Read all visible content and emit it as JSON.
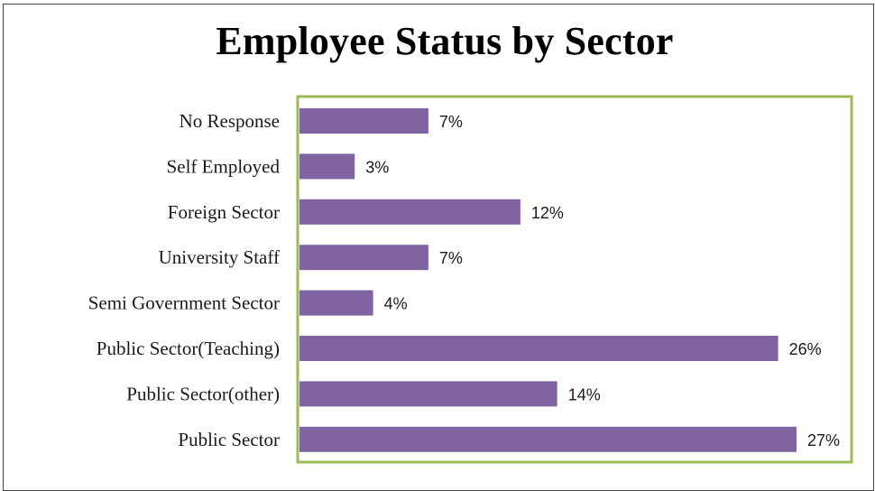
{
  "chart_data": {
    "type": "bar",
    "orientation": "horizontal",
    "title": "Employee Status by Sector",
    "categories": [
      "No Response",
      "Self Employed",
      "Foreign Sector",
      "University Staff",
      "Semi Government Sector",
      "Public Sector(Teaching)",
      "Public Sector(other)",
      "Public Sector"
    ],
    "values": [
      7,
      3,
      12,
      7,
      4,
      26,
      14,
      27
    ],
    "value_labels": [
      "7%",
      "3%",
      "12%",
      "7%",
      "4%",
      "26%",
      "14%",
      "27%"
    ],
    "xlim": [
      0,
      27
    ],
    "grid": false,
    "legend": "none",
    "colors": {
      "bar": "#8064A2",
      "plot_border": "#9BBB59",
      "frame_border": "#444444"
    }
  }
}
